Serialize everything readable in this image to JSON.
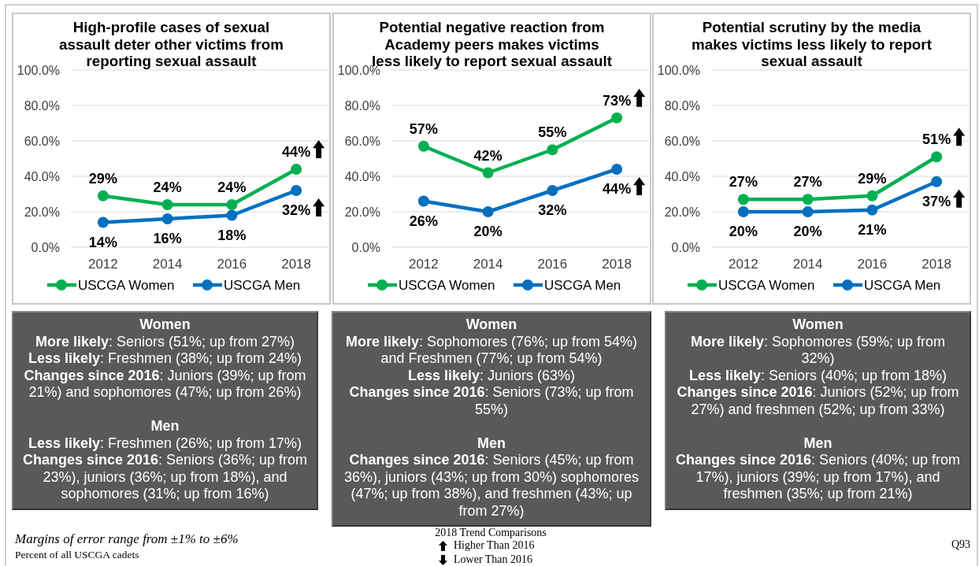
{
  "chart_data": [
    {
      "type": "line",
      "title": "High-profile cases of sexual assault deter other victims from reporting sexual assault",
      "categories": [
        "2012",
        "2014",
        "2016",
        "2018"
      ],
      "series": [
        {
          "name": "USCGA Women",
          "color": "#00b050",
          "values": [
            29,
            24,
            24,
            44
          ],
          "value_labels": [
            "29%",
            "24%",
            "24%",
            "44%"
          ]
        },
        {
          "name": "USCGA Men",
          "color": "#0070c0",
          "values": [
            14,
            16,
            18,
            32
          ],
          "value_labels": [
            "14%",
            "16%",
            "18%",
            "32%"
          ]
        }
      ],
      "ylim": [
        0,
        100
      ],
      "yticks": [
        {
          "value": 0,
          "label": "0.0%"
        },
        {
          "value": 20,
          "label": "20.0%"
        },
        {
          "value": 40,
          "label": "40.0%"
        },
        {
          "value": 60,
          "label": "60.0%"
        },
        {
          "value": 80,
          "label": "80.0%"
        },
        {
          "value": 100,
          "label": "100.0%"
        }
      ],
      "grid": "y",
      "legend": "bottom",
      "marker": "circle"
    },
    {
      "type": "line",
      "title": "Potential negative reaction from Academy peers makes victims less likely to report sexual assault",
      "categories": [
        "2012",
        "2014",
        "2016",
        "2018"
      ],
      "series": [
        {
          "name": "USCGA Women",
          "color": "#00b050",
          "values": [
            57,
            42,
            55,
            73
          ],
          "value_labels": [
            "57%",
            "42%",
            "55%",
            "73%"
          ]
        },
        {
          "name": "USCGA Men",
          "color": "#0070c0",
          "values": [
            26,
            20,
            32,
            44
          ],
          "value_labels": [
            "26%",
            "20%",
            "32%",
            "44%"
          ]
        }
      ],
      "ylim": [
        0,
        100
      ],
      "yticks": [
        {
          "value": 0,
          "label": "0.0%"
        },
        {
          "value": 20,
          "label": "20.0%"
        },
        {
          "value": 40,
          "label": "40.0%"
        },
        {
          "value": 60,
          "label": "60.0%"
        },
        {
          "value": 80,
          "label": "80.0%"
        },
        {
          "value": 100,
          "label": "100.0%"
        }
      ],
      "grid": "y",
      "legend": "bottom",
      "marker": "circle"
    },
    {
      "type": "line",
      "title": "Potential scrutiny by the media makes victims less likely to report sexual assault",
      "categories": [
        "2012",
        "2014",
        "2016",
        "2018"
      ],
      "series": [
        {
          "name": "USCGA Women",
          "color": "#00b050",
          "values": [
            27,
            27,
            29,
            51
          ],
          "value_labels": [
            "27%",
            "27%",
            "29%",
            "51%"
          ]
        },
        {
          "name": "USCGA Men",
          "color": "#0070c0",
          "values": [
            20,
            20,
            21,
            37
          ],
          "value_labels": [
            "20%",
            "20%",
            "21%",
            "37%"
          ]
        }
      ],
      "ylim": [
        0,
        100
      ],
      "yticks": [
        {
          "value": 0,
          "label": "0.0%"
        },
        {
          "value": 20,
          "label": "20.0%"
        },
        {
          "value": 40,
          "label": "40.0%"
        },
        {
          "value": 60,
          "label": "60.0%"
        },
        {
          "value": 80,
          "label": "80.0%"
        },
        {
          "value": 100,
          "label": "100.0%"
        }
      ],
      "grid": "y",
      "legend": "bottom",
      "marker": "circle"
    },
    {
      "type": "other",
      "annotations": [
        "Women",
        "More likely: Seniors (51%; up from 27%)",
        "Less likely: Freshmen (38%; up from 24%)",
        "Changes since 2016: Juniors (39%; up from 21%) and sophomores (47%; up from 26%)",
        "Men",
        "Less likely: Freshmen (26%; up from 17%)",
        "Changes since 2016: Seniors (36%; up from 23%), juniors (36%; up from 18%), and sophomores (31%; up from 16%)"
      ]
    },
    {
      "type": "other",
      "annotations": [
        "Women",
        "More likely: Sophomores (76%; up from 54%) and Freshmen (77%; up from 54%)",
        "Less likely: Juniors (63%)",
        "Changes since 2016: Seniors (73%; up from 55%)",
        "Men",
        "Changes since 2016: Seniors (45%; up from 36%), juniors (43%; up from 30%) sophomores (47%; up from 38%), and freshmen (43%; up from 27%)"
      ]
    },
    {
      "type": "other",
      "annotations": [
        "Women",
        "More likely: Sophomores (59%; up from 32%)",
        "Less likely: Seniors (40%; up from 18%)",
        "Changes since 2016: Juniors (52%; up from 27%) and freshmen (52%; up from 33%)",
        "Men",
        "Changes since 2016: Seniors (40%; up from 17%), juniors (39%; up from 17%), and freshmen (35%; up from 21%)"
      ]
    },
    {
      "type": "other",
      "annotations": [
        "Margins of error range from ±1% to ±6%",
        "Percent of all USCGA cadets",
        "2018 Trend Comparisons",
        "Higher Than 2016",
        "Lower Than 2016",
        "Q93"
      ]
    }
  ]
}
